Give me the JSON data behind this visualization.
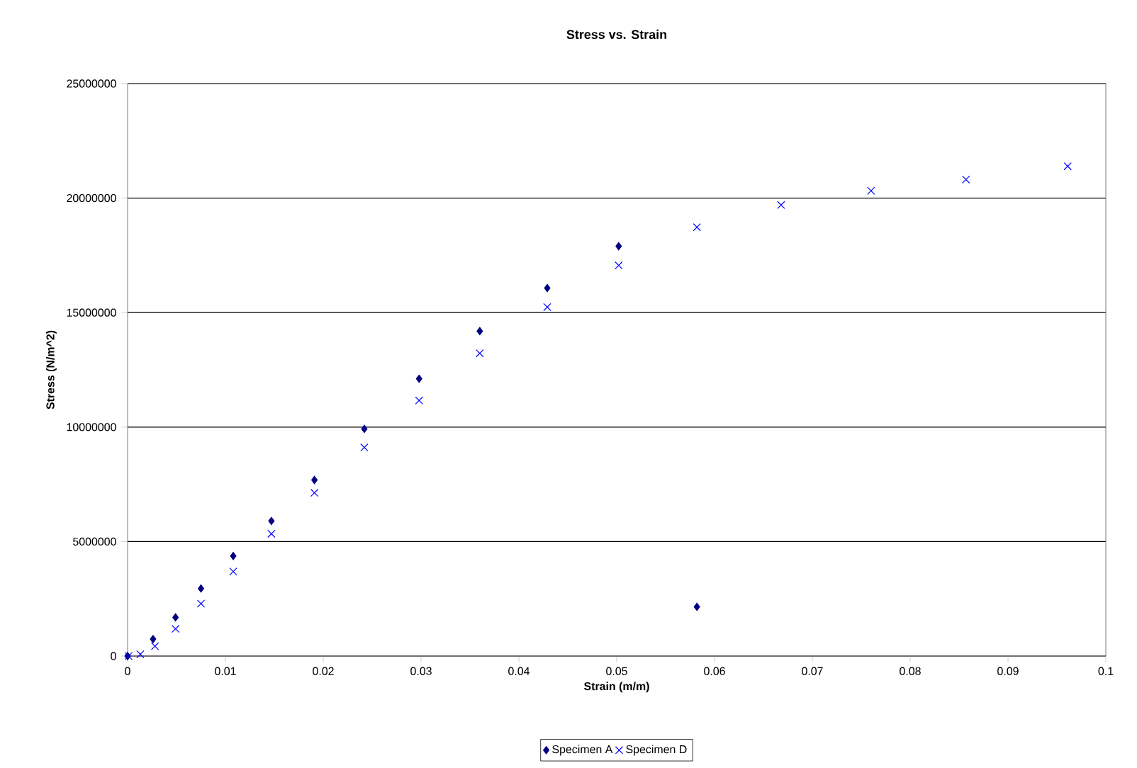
{
  "chart_data": {
    "type": "scatter",
    "title": "Stress vs. Strain",
    "xlabel": "Strain (m/m)",
    "ylabel": "Stress (N/m^2)",
    "xlim": [
      0,
      0.1
    ],
    "xticks": [
      0,
      0.01,
      0.02,
      0.03,
      0.04,
      0.05,
      0.06,
      0.07,
      0.08,
      0.09,
      0.1
    ],
    "ylim": [
      0,
      25000000
    ],
    "yticks": [
      0,
      5000000,
      10000000,
      15000000,
      20000000,
      25000000
    ],
    "grid": "y",
    "legend": "bottom",
    "series": [
      {
        "name": "Specimen A",
        "color": "#000080",
        "marker": "diamond",
        "x": [
          0,
          0.0026,
          0.0049,
          0.0075,
          0.0108,
          0.0147,
          0.0191,
          0.0242,
          0.0298,
          0.036,
          0.0429,
          0.0502,
          0.0582
        ],
        "values": [
          0,
          740000,
          1690000,
          2950000,
          4370000,
          5900000,
          7690000,
          9920000,
          12110000,
          14190000,
          16070000,
          17900000,
          2150000
        ]
      },
      {
        "name": "Specimen D",
        "color": "#0000ff",
        "marker": "cross",
        "x": [
          0.0001,
          0.0013,
          0.0028,
          0.0049,
          0.0075,
          0.0108,
          0.0147,
          0.0191,
          0.0242,
          0.0298,
          0.036,
          0.0429,
          0.0502,
          0.0582,
          0.0668,
          0.076,
          0.0857,
          0.0961
        ],
        "values": [
          0,
          80000,
          430000,
          1190000,
          2290000,
          3690000,
          5340000,
          7130000,
          9110000,
          11160000,
          13220000,
          15240000,
          17060000,
          18730000,
          19700000,
          20320000,
          20810000,
          21390000
        ]
      }
    ]
  }
}
